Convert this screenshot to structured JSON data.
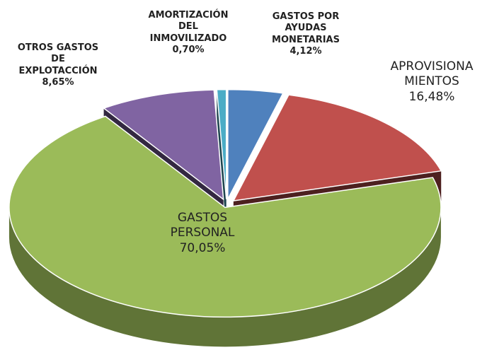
{
  "chart_data": {
    "type": "pie",
    "categories": [
      "GASTOS POR\nAYUDAS\nMONETARIAS",
      "APROVISIONA\nMIENTOS",
      "GASTOS\nPERSONAL",
      "OTROS GASTOS\nDE\nEXPLOTACCIÓN",
      "AMORTIZACIÓN\nDEL\nINMOVILIZADO"
    ],
    "values": [
      4.12,
      16.48,
      70.05,
      8.65,
      0.7
    ],
    "value_labels": [
      "4,12%",
      "16,48%",
      "70,05%",
      "8,65%",
      "0,70%"
    ],
    "colors": [
      "#4f81bd",
      "#c0504d",
      "#9bbb59",
      "#8064a2",
      "#4bacc6"
    ]
  }
}
